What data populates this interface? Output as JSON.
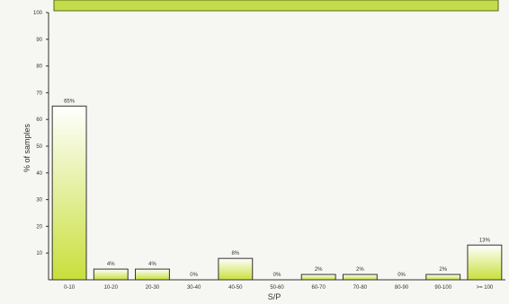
{
  "chart_data": {
    "type": "bar",
    "categories": [
      "0-10",
      "10-20",
      "20-30",
      "30-40",
      "40-50",
      "50-60",
      "60-70",
      "70-80",
      "80-90",
      "90-100",
      ">= 100"
    ],
    "values": [
      65,
      4,
      4,
      0,
      8,
      0,
      2,
      2,
      0,
      2,
      13
    ],
    "data_labels": [
      "65%",
      "4%",
      "4%",
      "0%",
      "8%",
      "0%",
      "2%",
      "2%",
      "0%",
      "2%",
      "13%"
    ],
    "xlabel": "S/P",
    "ylabel": "% of samples",
    "ylim": [
      0,
      100
    ],
    "yticks": [
      "100",
      "90",
      "80",
      "70",
      "60",
      "50",
      "40",
      "30",
      "20",
      "10"
    ],
    "grid": false,
    "colors": {
      "bar_top": "#ffffff",
      "bar_bottom": "#c8df3a",
      "bar_stroke": "#333333",
      "header_band": "#c5dc4a",
      "axis": "#333333"
    }
  }
}
